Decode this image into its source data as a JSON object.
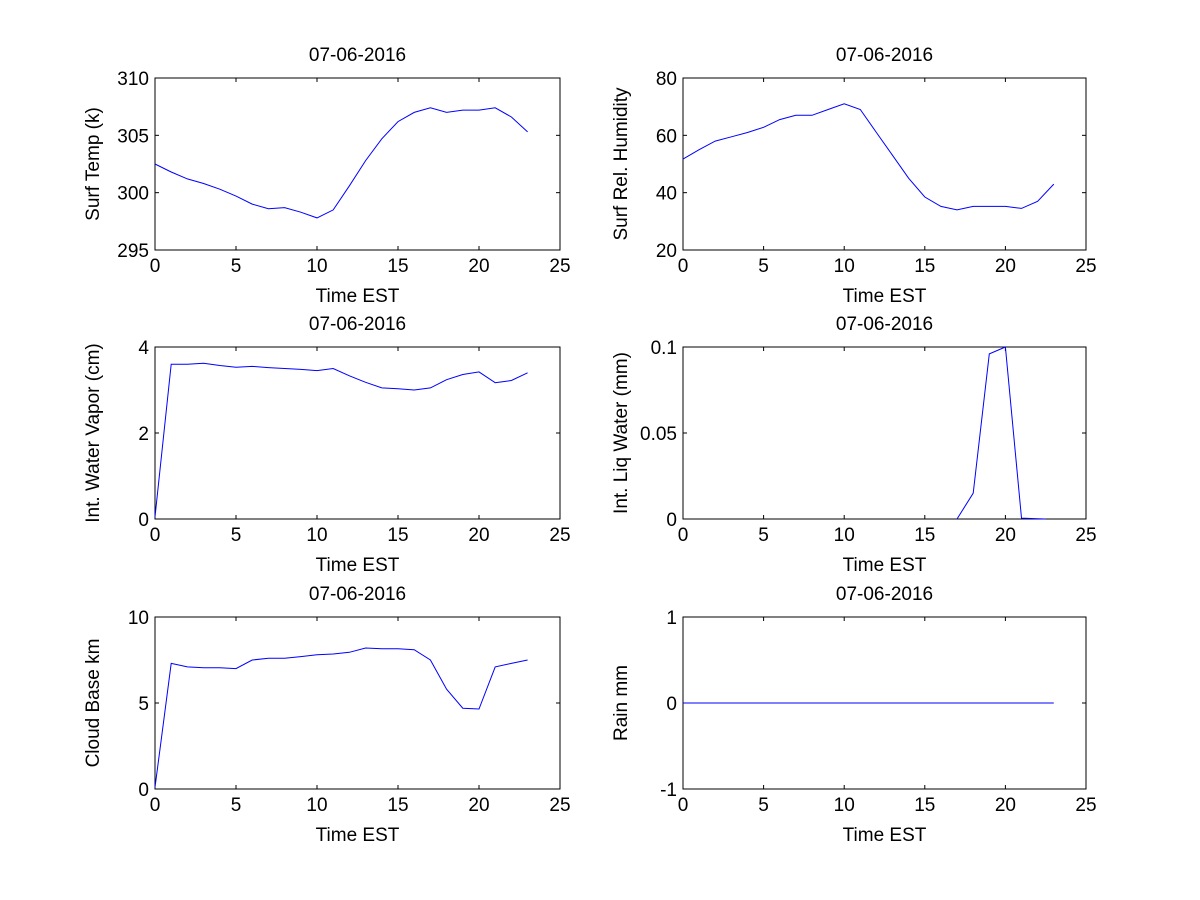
{
  "colors": {
    "line": "#0000ff",
    "axes": "#000000",
    "background": "#ffffff"
  },
  "chart_data": [
    {
      "type": "line",
      "title": "07-06-2016",
      "xlabel": "Time EST",
      "ylabel": "Surf Temp (k)",
      "xlim": [
        0,
        25
      ],
      "ylim": [
        295,
        310
      ],
      "xticks": [
        0,
        5,
        10,
        15,
        20,
        25
      ],
      "yticks": [
        295,
        300,
        305,
        310
      ],
      "xtick_labels": [
        "0",
        "5",
        "10",
        "15",
        "20",
        "25"
      ],
      "ytick_labels": [
        "295",
        "300",
        "305",
        "310"
      ],
      "x": [
        0,
        1,
        2,
        3,
        4,
        5,
        6,
        7,
        8,
        9,
        10,
        11,
        12,
        13,
        14,
        15,
        16,
        17,
        18,
        19,
        20,
        21,
        22,
        23
      ],
      "values": [
        302.5,
        301.8,
        301.2,
        300.8,
        300.3,
        299.7,
        299.0,
        298.6,
        298.7,
        298.3,
        297.8,
        298.5,
        300.6,
        302.8,
        304.7,
        306.2,
        307.0,
        307.4,
        307.0,
        307.2,
        307.2,
        307.4,
        306.6,
        305.3
      ]
    },
    {
      "type": "line",
      "title": "07-06-2016",
      "xlabel": "Time EST",
      "ylabel": "Surf Rel. Humidity",
      "xlim": [
        0,
        25
      ],
      "ylim": [
        20,
        80
      ],
      "xticks": [
        0,
        5,
        10,
        15,
        20,
        25
      ],
      "yticks": [
        20,
        40,
        60,
        80
      ],
      "xtick_labels": [
        "0",
        "5",
        "10",
        "15",
        "20",
        "25"
      ],
      "ytick_labels": [
        "20",
        "40",
        "60",
        "80"
      ],
      "x": [
        0,
        1,
        2,
        3,
        4,
        5,
        6,
        7,
        8,
        9,
        10,
        11,
        12,
        13,
        14,
        15,
        16,
        17,
        18,
        19,
        20,
        21,
        22,
        23
      ],
      "values": [
        51.7,
        55.0,
        58.0,
        59.5,
        61.0,
        62.8,
        65.5,
        67.0,
        67.0,
        69.0,
        71.0,
        69.0,
        61.0,
        53.0,
        45.0,
        38.5,
        35.2,
        34.0,
        35.2,
        35.2,
        35.2,
        34.5,
        37.0,
        43.0
      ]
    },
    {
      "type": "line",
      "title": "07-06-2016",
      "xlabel": "Time EST",
      "ylabel": "Int. Water Vapor (cm)",
      "xlim": [
        0,
        25
      ],
      "ylim": [
        0,
        4
      ],
      "xticks": [
        0,
        5,
        10,
        15,
        20,
        25
      ],
      "yticks": [
        0,
        2,
        4
      ],
      "xtick_labels": [
        "0",
        "5",
        "10",
        "15",
        "20",
        "25"
      ],
      "ytick_labels": [
        "0",
        "2",
        "4"
      ],
      "x": [
        0,
        1,
        2,
        3,
        4,
        5,
        6,
        7,
        8,
        9,
        10,
        11,
        12,
        13,
        14,
        15,
        16,
        17,
        18,
        19,
        20,
        21,
        22,
        23
      ],
      "values": [
        0.05,
        3.6,
        3.6,
        3.62,
        3.57,
        3.53,
        3.55,
        3.52,
        3.5,
        3.48,
        3.45,
        3.5,
        3.33,
        3.18,
        3.05,
        3.03,
        3.0,
        3.05,
        3.24,
        3.36,
        3.42,
        3.17,
        3.22,
        3.4
      ]
    },
    {
      "type": "line",
      "title": "07-06-2016",
      "xlabel": "Time EST",
      "ylabel": "Int. Liq Water (mm)",
      "xlim": [
        0,
        25
      ],
      "ylim": [
        0,
        0.1
      ],
      "xticks": [
        0,
        5,
        10,
        15,
        20,
        25
      ],
      "yticks": [
        0,
        0.05,
        0.1
      ],
      "xtick_labels": [
        "0",
        "5",
        "10",
        "15",
        "20",
        "25"
      ],
      "ytick_labels": [
        "0",
        "0.05",
        "0.1"
      ],
      "x": [
        17,
        18,
        19,
        20,
        21,
        22,
        22.5
      ],
      "values": [
        0.0,
        0.015,
        0.096,
        0.1,
        0.0005,
        0.0002,
        0.0
      ]
    },
    {
      "type": "line",
      "title": "07-06-2016",
      "xlabel": "Time EST",
      "ylabel": "Cloud Base km",
      "xlim": [
        0,
        25
      ],
      "ylim": [
        0,
        10
      ],
      "xticks": [
        0,
        5,
        10,
        15,
        20,
        25
      ],
      "yticks": [
        0,
        5,
        10
      ],
      "xtick_labels": [
        "0",
        "5",
        "10",
        "15",
        "20",
        "25"
      ],
      "ytick_labels": [
        "0",
        "5",
        "10"
      ],
      "x": [
        0,
        1,
        2,
        3,
        4,
        5,
        6,
        7,
        8,
        9,
        10,
        11,
        12,
        13,
        14,
        15,
        16,
        17,
        18,
        19,
        20,
        21,
        22,
        23
      ],
      "values": [
        0.1,
        7.3,
        7.1,
        7.05,
        7.05,
        7.0,
        7.5,
        7.6,
        7.6,
        7.7,
        7.8,
        7.85,
        7.95,
        8.2,
        8.15,
        8.15,
        8.1,
        7.5,
        5.8,
        4.7,
        4.65,
        7.1,
        7.3,
        7.5
      ]
    },
    {
      "type": "line",
      "title": "07-06-2016",
      "xlabel": "Time EST",
      "ylabel": "Rain mm",
      "xlim": [
        0,
        25
      ],
      "ylim": [
        -1,
        1
      ],
      "xticks": [
        0,
        5,
        10,
        15,
        20,
        25
      ],
      "yticks": [
        -1,
        0,
        1
      ],
      "xtick_labels": [
        "0",
        "5",
        "10",
        "15",
        "20",
        "25"
      ],
      "ytick_labels": [
        "-1",
        "0",
        "1"
      ],
      "x": [
        0,
        1,
        2,
        3,
        4,
        5,
        6,
        7,
        8,
        9,
        10,
        11,
        12,
        13,
        14,
        15,
        16,
        17,
        18,
        19,
        20,
        21,
        22,
        23
      ],
      "values": [
        0,
        0,
        0,
        0,
        0,
        0,
        0,
        0,
        0,
        0,
        0,
        0,
        0,
        0,
        0,
        0,
        0,
        0,
        0,
        0,
        0,
        0,
        0,
        0
      ]
    }
  ]
}
